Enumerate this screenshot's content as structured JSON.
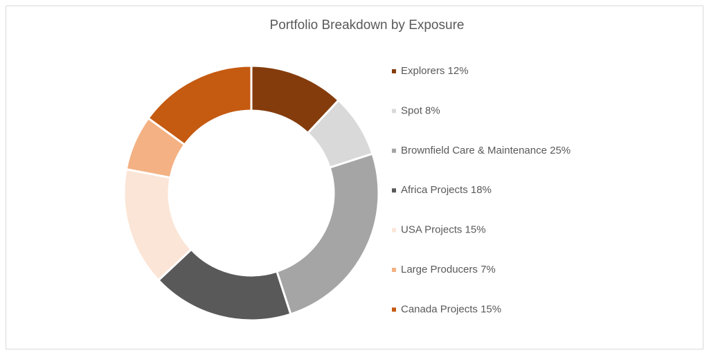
{
  "chart_data": {
    "type": "donut",
    "title": "Portfolio Breakdown by Exposure",
    "categories": [
      "Explorers 12%",
      "Spot 8%",
      "Brownfield Care & Maintenance 25%",
      "Africa Projects 18%",
      "USA Projects 15%",
      "Large Producers 7%",
      "Canada Projects 15%"
    ],
    "values": [
      12,
      8,
      25,
      18,
      15,
      7,
      15
    ],
    "colors": [
      "#843C0C",
      "#D9D9D9",
      "#A5A5A5",
      "#595959",
      "#FBE5D6",
      "#F4B183",
      "#C55A11"
    ],
    "legend": "right"
  }
}
